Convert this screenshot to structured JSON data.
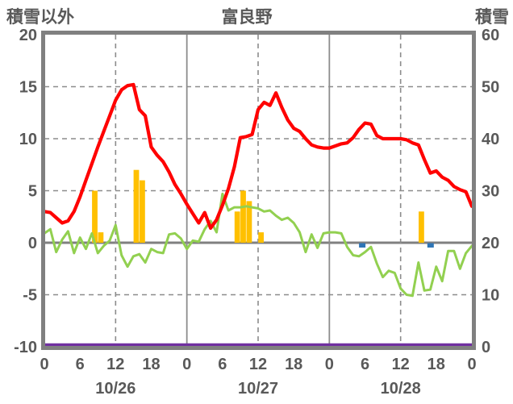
{
  "header": {
    "left_axis_title": "積雪以外",
    "title": "富良野",
    "right_axis_title": "積雪"
  },
  "colors": {
    "temperature_line": "#FF0000",
    "green_line": "#92D050",
    "snow_depth_line": "#7030A0",
    "precip_bar": "#FFC000",
    "blue_mark": "#2E75B6",
    "grid": "#8C8C8C",
    "border": "#808080",
    "text": "#595959"
  },
  "chart_data": {
    "type": "line",
    "title": "富良野",
    "left_axis": {
      "label": "積雪以外",
      "min": -10,
      "max": 20,
      "ticks": [
        20,
        15,
        10,
        5,
        0,
        -5,
        -10
      ]
    },
    "right_axis": {
      "label": "積雪",
      "min": 0,
      "max": 60,
      "ticks": [
        60,
        50,
        40,
        30,
        20,
        10,
        0
      ]
    },
    "x_axis": {
      "hours_total": 72,
      "tick_step": 6,
      "tick_labels": [
        "0",
        "6",
        "12",
        "18",
        "0",
        "6",
        "12",
        "18",
        "0",
        "6",
        "12",
        "18",
        "0"
      ],
      "dates": [
        {
          "label": "10/26",
          "center_hour": 12
        },
        {
          "label": "10/27",
          "center_hour": 36
        },
        {
          "label": "10/28",
          "center_hour": 60
        }
      ],
      "solid_vlines_hours": [
        24,
        48
      ],
      "dashed_vlines_hours": [
        12,
        36,
        60
      ]
    },
    "grid": {
      "dashed_hlines_values": [
        15,
        10,
        5,
        -5
      ],
      "zero_line_value": 0
    },
    "series": [
      {
        "name": "red-temperature-line",
        "axis": "left",
        "color": "#FF0000",
        "values": [
          3.0,
          2.9,
          2.4,
          1.9,
          2.1,
          3.0,
          4.4,
          6.0,
          7.6,
          9.2,
          10.7,
          12.2,
          13.7,
          14.7,
          15.1,
          15.2,
          12.8,
          12.2,
          9.2,
          8.4,
          7.8,
          6.8,
          5.6,
          4.7,
          3.7,
          2.8,
          1.9,
          2.9,
          1.4,
          2.2,
          3.6,
          5.2,
          7.3,
          10.1,
          10.2,
          10.4,
          12.8,
          13.5,
          13.2,
          14.4,
          13.0,
          11.8,
          11.0,
          10.7,
          10.0,
          9.4,
          9.2,
          9.1,
          9.1,
          9.3,
          9.5,
          9.6,
          10.1,
          10.9,
          11.5,
          11.4,
          10.3,
          10.0,
          10.0,
          10.0,
          10.0,
          9.9,
          9.6,
          9.4,
          8.0,
          6.7,
          6.9,
          6.3,
          6.0,
          5.4,
          5.1,
          4.9,
          3.5
        ]
      },
      {
        "name": "green-line",
        "axis": "left",
        "color": "#92D050",
        "values": [
          0.9,
          1.3,
          -0.9,
          0.3,
          1.1,
          -1.0,
          0.5,
          -0.6,
          0.9,
          -1.0,
          -0.3,
          0.2,
          1.7,
          -1.2,
          -2.3,
          -1.3,
          -1.1,
          -1.9,
          -0.6,
          -0.9,
          -1.0,
          0.8,
          0.9,
          0.4,
          -0.6,
          0.2,
          0.1,
          1.3,
          2.1,
          1.0,
          4.7,
          3.1,
          3.4,
          3.4,
          3.5,
          3.4,
          3.3,
          3.0,
          3.1,
          2.6,
          2.2,
          2.4,
          1.9,
          1.0,
          -0.9,
          0.8,
          -0.5,
          0.9,
          1.0,
          1.0,
          0.9,
          -0.4,
          -1.2,
          -1.3,
          -0.9,
          -0.4,
          -2.0,
          -3.3,
          -2.7,
          -2.9,
          -4.4,
          -5.0,
          -5.1,
          -1.9,
          -4.6,
          -4.5,
          -2.3,
          -3.7,
          -0.8,
          -0.8,
          -2.5,
          -1.0,
          -0.3
        ]
      },
      {
        "name": "purple-snow-depth-line",
        "axis": "right",
        "color": "#7030A0",
        "constant_value": 0
      }
    ],
    "bars": {
      "name": "orange-precip-bars",
      "color": "#FFC000",
      "points": [
        {
          "hour": 8,
          "value": 5
        },
        {
          "hour": 9,
          "value": 1
        },
        {
          "hour": 15,
          "value": 7
        },
        {
          "hour": 16,
          "value": 6
        },
        {
          "hour": 32,
          "value": 3
        },
        {
          "hour": 33,
          "value": 5
        },
        {
          "hour": 34,
          "value": 4
        },
        {
          "hour": 36,
          "value": 1
        },
        {
          "hour": 63,
          "value": 3
        }
      ]
    },
    "blue_marks": {
      "name": "blue-snow-flag-marks",
      "color": "#2E75B6",
      "hours": [
        53,
        64.5
      ]
    }
  }
}
